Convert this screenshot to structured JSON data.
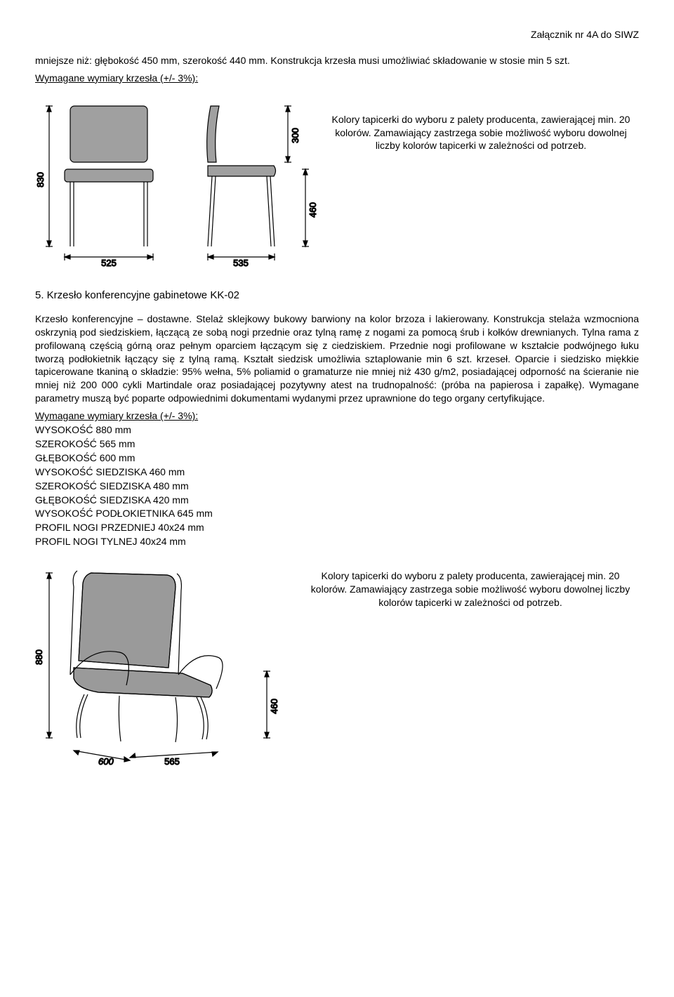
{
  "header": {
    "attachment": "Załącznik nr 4A do SIWZ"
  },
  "intro": {
    "p1": "mniejsze niż: głębokość 450 mm, szerokość 440 mm. Konstrukcja krzesła musi umożliwiać składowanie w stosie min 5 szt.",
    "p2": "Wymagane wymiary krzesła (+/- 3%):"
  },
  "color_note": "Kolory tapicerki do wyboru z palety producenta, zawierającej min. 20 kolorów. Zamawiający zastrzega sobie możliwość wyboru dowolnej liczby kolorów tapicerki w zależności od potrzeb.",
  "diagram1": {
    "height": "830",
    "back_height": "300",
    "seat_height": "460",
    "width_front": "525",
    "width_side": "535",
    "stroke": "#000000",
    "fill_seat": "#a0a0a0",
    "fill_back": "#a0a0a0",
    "tick_font": 13
  },
  "section5": {
    "heading": "5. Krzesło konferencyjne gabinetowe  KK-02",
    "body": "Krzesło konferencyjne – dostawne. Stelaż sklejkowy bukowy barwiony na kolor brzoza i lakierowany. Konstrukcja stelaża wzmocniona oskrzynią pod siedziskiem, łączącą ze sobą nogi przednie oraz tylną ramę z nogami za pomocą śrub i kołków drewnianych. Tylna rama z profilowaną częścią górną oraz pełnym oparciem łączącym się z ciedziskiem. Przednie nogi profilowane w kształcie podwójnego łuku tworzą podłokietnik łączący się z tylną ramą. Kształt siedzisk umożliwia sztaplowanie min 6 szt. krzeseł. Oparcie i siedzisko miękkie tapicerowane tkaniną o składzie: 95% wełna, 5% poliamid o gramaturze nie mniej niż 430 g/m2, posiadającej odporność na ścieranie nie mniej niż 200 000 cykli Martindale oraz posiadającej pozytywny atest na trudnopalność: (próba na papierosa i zapałkę). Wymagane parametry muszą być poparte odpowiednimi dokumentami wydanymi przez uprawnione do tego organy certyfikujące.",
    "dim_label": "Wymagane wymiary krzesła (+/- 3%):",
    "dims": [
      "WYSOKOŚĆ 880 mm",
      "SZEROKOŚĆ 565 mm",
      "GŁĘBOKOŚĆ 600 mm",
      "WYSOKOŚĆ SIEDZISKA 460 mm",
      "SZEROKOŚĆ SIEDZISKA 480 mm",
      "GŁĘBOKOŚĆ SIEDZISKA 420 mm",
      "WYSOKOŚĆ PODŁOKIETNIKA 645 mm",
      "PROFIL NOGI PRZEDNIEJ 40x24 mm",
      "PROFIL NOGI TYLNEJ 40x24 mm"
    ]
  },
  "diagram2": {
    "height": "880",
    "seat_height": "460",
    "depth": "600",
    "width": "565",
    "stroke": "#000000",
    "fill": "#9a9a9a",
    "tick_font": 13
  }
}
